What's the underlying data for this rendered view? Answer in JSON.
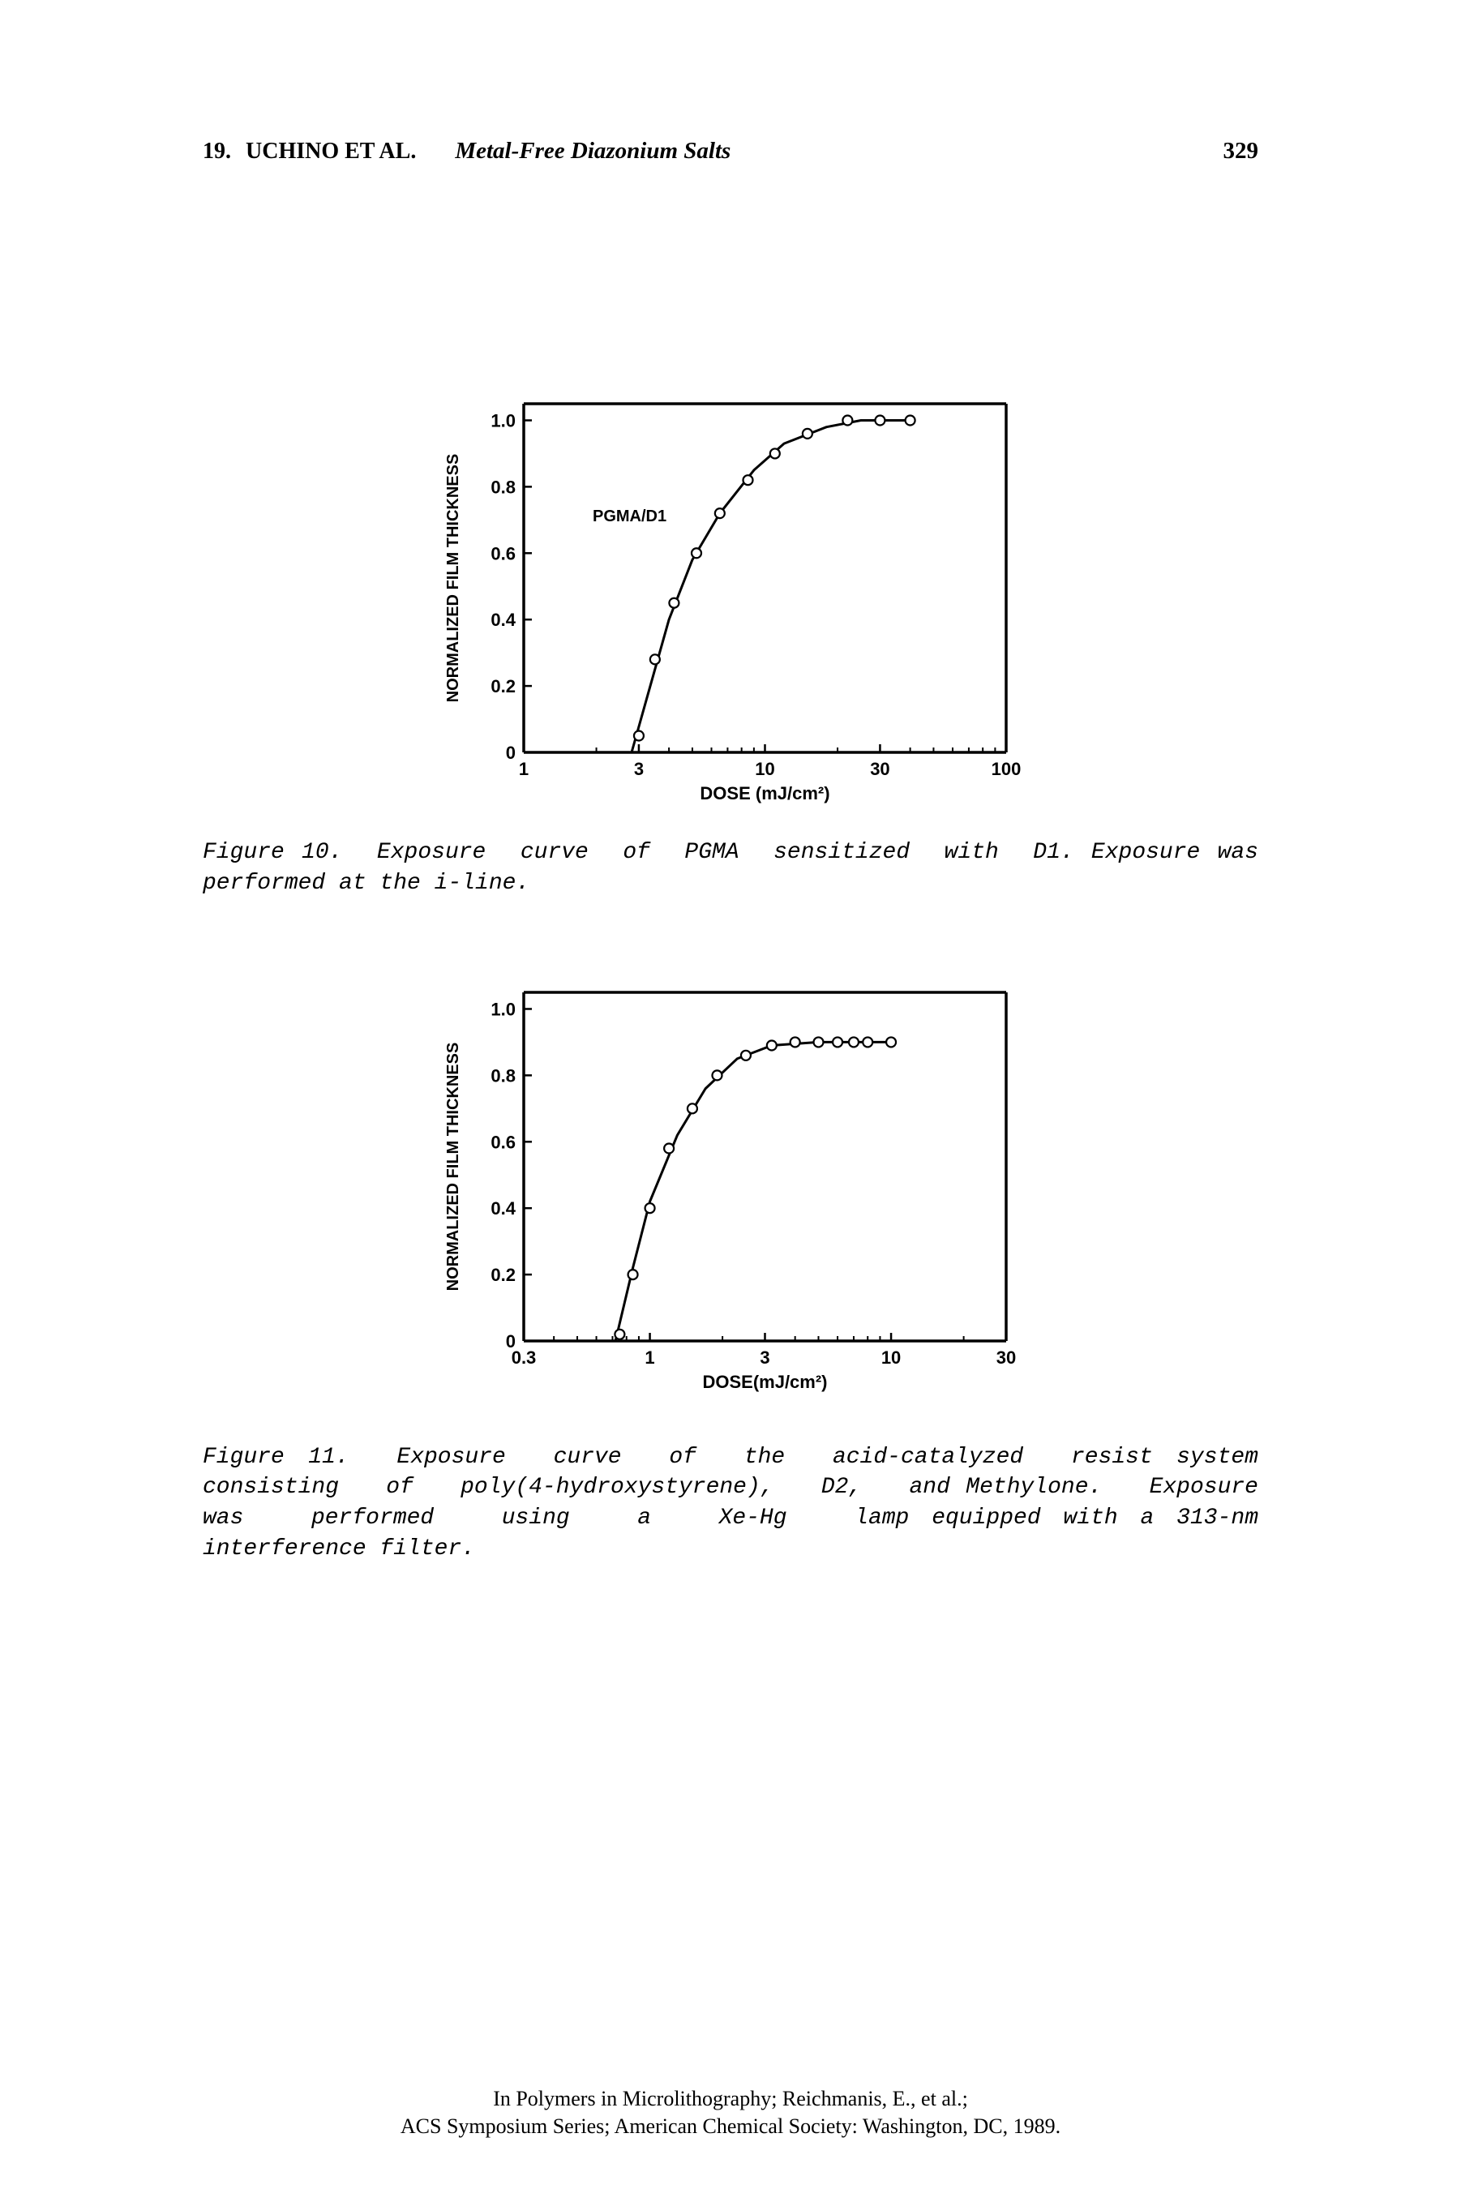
{
  "header": {
    "chapter_num": "19.",
    "authors": "UCHINO ET AL.",
    "title": "Metal-Free Diazonium Salts",
    "page_num": "329"
  },
  "figure10": {
    "caption": "Figure 10.  Exposure  curve  of  PGMA  sensitized  with  D1. Exposure was performed at the i-line.",
    "chart": {
      "type": "line",
      "x_axis": {
        "label": "DOSE (mJ/cm²)",
        "scale": "log",
        "min": 1,
        "max": 100,
        "ticks": [
          1,
          3,
          10,
          30,
          100
        ],
        "tick_labels": [
          "1",
          "3",
          "10",
          "30",
          "100"
        ]
      },
      "y_axis": {
        "label": "NORMALIZED FILM THICKNESS",
        "scale": "linear",
        "min": 0,
        "max": 1.05,
        "ticks": [
          0,
          0.2,
          0.4,
          0.6,
          0.8,
          1.0
        ],
        "tick_labels": [
          "0",
          "0.2",
          "0.4",
          "0.6",
          "0.8",
          "1.0"
        ]
      },
      "series_label": "PGMA/D1",
      "points": [
        {
          "x": 3.0,
          "y": 0.05
        },
        {
          "x": 3.5,
          "y": 0.28
        },
        {
          "x": 4.2,
          "y": 0.45
        },
        {
          "x": 5.2,
          "y": 0.6
        },
        {
          "x": 6.5,
          "y": 0.72
        },
        {
          "x": 8.5,
          "y": 0.82
        },
        {
          "x": 11,
          "y": 0.9
        },
        {
          "x": 15,
          "y": 0.96
        },
        {
          "x": 22,
          "y": 1.0
        },
        {
          "x": 30,
          "y": 1.0
        },
        {
          "x": 40,
          "y": 1.0
        }
      ],
      "curve": [
        {
          "x": 2.8,
          "y": 0.0
        },
        {
          "x": 3.2,
          "y": 0.15
        },
        {
          "x": 4.0,
          "y": 0.4
        },
        {
          "x": 5.0,
          "y": 0.58
        },
        {
          "x": 6.5,
          "y": 0.72
        },
        {
          "x": 9.0,
          "y": 0.85
        },
        {
          "x": 12,
          "y": 0.93
        },
        {
          "x": 18,
          "y": 0.98
        },
        {
          "x": 25,
          "y": 1.0
        },
        {
          "x": 40,
          "y": 1.0
        }
      ],
      "stroke_width": 3,
      "stroke_color": "#000000",
      "marker": "circle-open",
      "marker_size": 6,
      "frame_width": 3.5,
      "tick_length": 10,
      "font_size_axis": 22,
      "font_size_label": 22,
      "background": "#ffffff"
    }
  },
  "figure11": {
    "caption": "Figure 11.  Exposure  curve  of  the  acid-catalyzed  resist system   consisting   of   poly(4-hydroxystyrene),   D2,   and Methylone.   Exposure   was   performed   using   a   Xe-Hg   lamp equipped with a 313-nm interference filter.",
    "chart": {
      "type": "line",
      "x_axis": {
        "label": "DOSE(mJ/cm²)",
        "scale": "log",
        "min": 0.3,
        "max": 30,
        "ticks": [
          0.3,
          1,
          3,
          10,
          30
        ],
        "tick_labels": [
          "0.3",
          "1",
          "3",
          "10",
          "30"
        ]
      },
      "y_axis": {
        "label": "NORMALIZED FILM THICKNESS",
        "scale": "linear",
        "min": 0,
        "max": 1.05,
        "ticks": [
          0,
          0.2,
          0.4,
          0.6,
          0.8,
          1.0
        ],
        "tick_labels": [
          "0",
          "0.2",
          "0.4",
          "0.6",
          "0.8",
          "1.0"
        ]
      },
      "points": [
        {
          "x": 0.75,
          "y": 0.02
        },
        {
          "x": 0.85,
          "y": 0.2
        },
        {
          "x": 1.0,
          "y": 0.4
        },
        {
          "x": 1.2,
          "y": 0.58
        },
        {
          "x": 1.5,
          "y": 0.7
        },
        {
          "x": 1.9,
          "y": 0.8
        },
        {
          "x": 2.5,
          "y": 0.86
        },
        {
          "x": 3.2,
          "y": 0.89
        },
        {
          "x": 4.0,
          "y": 0.9
        },
        {
          "x": 5.0,
          "y": 0.9
        },
        {
          "x": 6.0,
          "y": 0.9
        },
        {
          "x": 7.0,
          "y": 0.9
        },
        {
          "x": 8.0,
          "y": 0.9
        },
        {
          "x": 10,
          "y": 0.9
        }
      ],
      "curve": [
        {
          "x": 0.72,
          "y": 0.0
        },
        {
          "x": 0.85,
          "y": 0.22
        },
        {
          "x": 1.0,
          "y": 0.42
        },
        {
          "x": 1.3,
          "y": 0.62
        },
        {
          "x": 1.7,
          "y": 0.76
        },
        {
          "x": 2.3,
          "y": 0.85
        },
        {
          "x": 3.2,
          "y": 0.89
        },
        {
          "x": 5.0,
          "y": 0.9
        },
        {
          "x": 10,
          "y": 0.9
        }
      ],
      "stroke_width": 3,
      "stroke_color": "#000000",
      "marker": "circle-open",
      "marker_size": 6,
      "frame_width": 3.5,
      "tick_length": 10,
      "font_size_axis": 22,
      "font_size_label": 22,
      "background": "#ffffff"
    }
  },
  "footer": {
    "line1": "In Polymers in Microlithography; Reichmanis, E., et al.;",
    "line2": "ACS Symposium Series; American Chemical Society: Washington, DC, 1989."
  }
}
